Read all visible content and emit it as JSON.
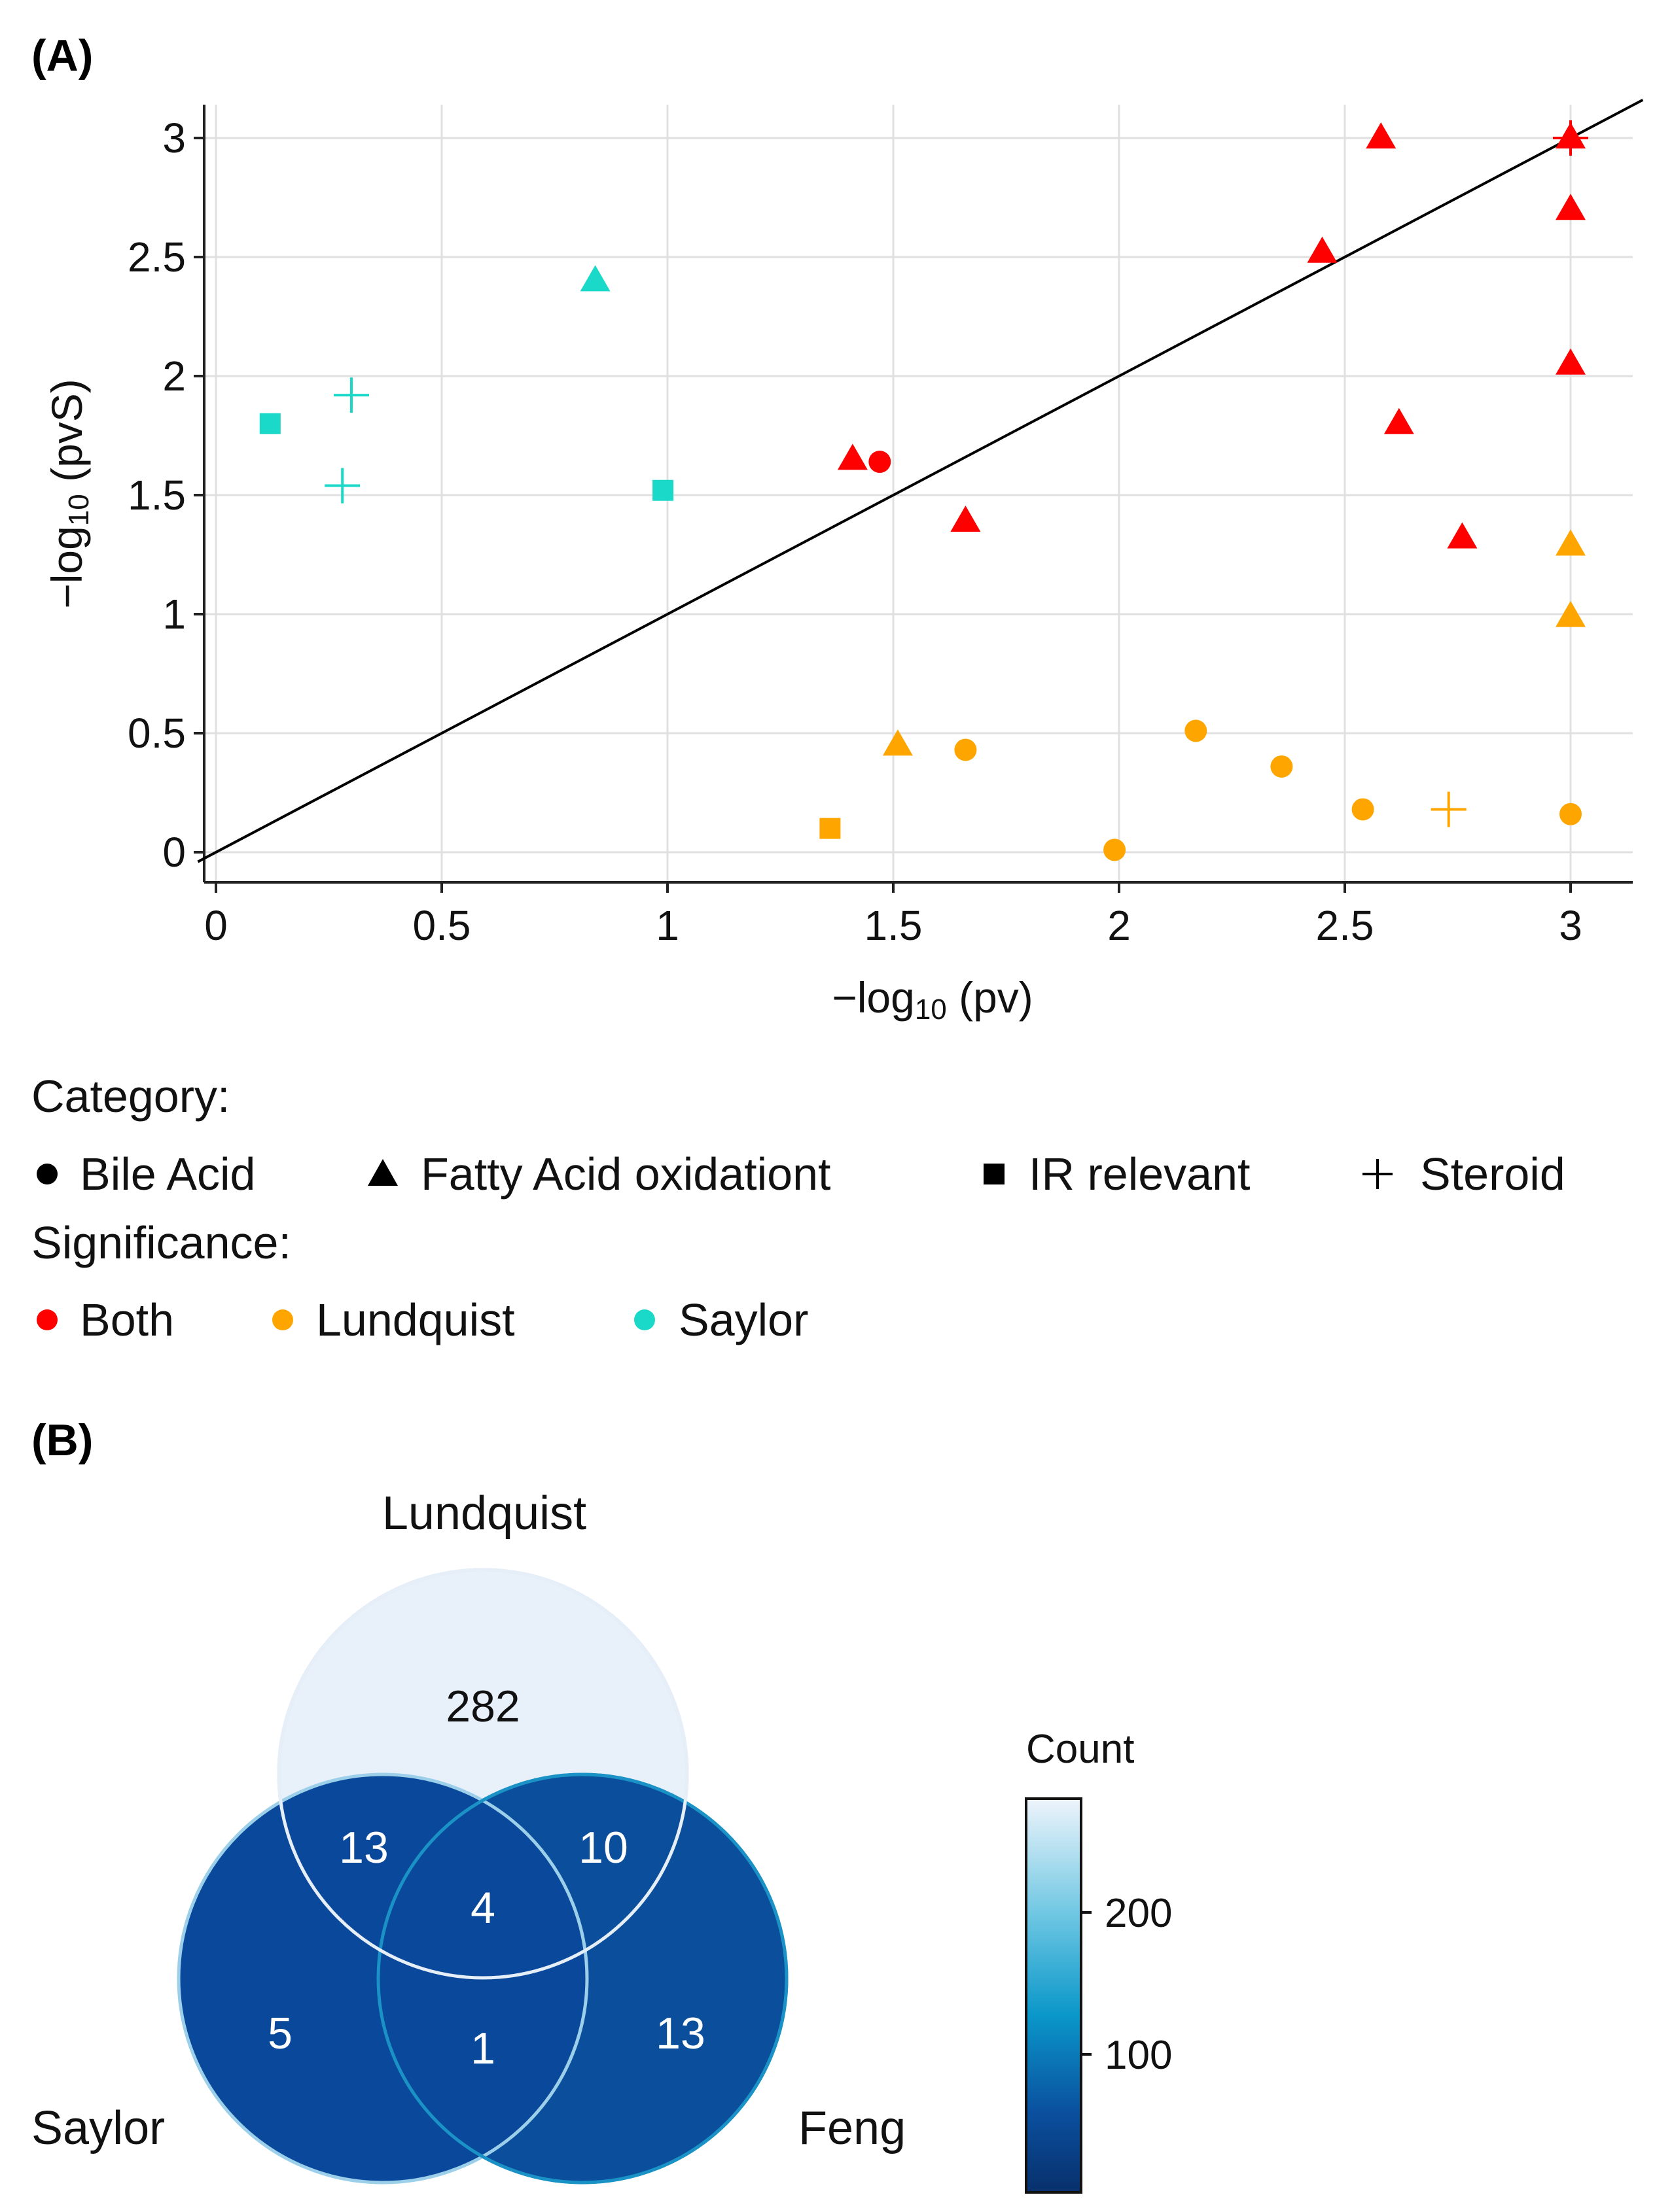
{
  "panel_a": {
    "label": "(A)",
    "xlabel_main": "−log",
    "xlabel_sub": "10",
    "xlabel_tail": " (pv)",
    "ylabel_main": "−log",
    "ylabel_sub": "10",
    "ylabel_tail": " (pvS)",
    "legend": {
      "category_title": "Category:",
      "categories": [
        "Bile Acid",
        "Fatty Acid oxidationt",
        "IR relevant",
        "Steroid"
      ],
      "significance_title": "Significance:",
      "significance": [
        "Both",
        "Lundquist",
        "Saylor"
      ]
    }
  },
  "panel_b": {
    "label": "(B)",
    "set_names": [
      "Lundquist",
      "Saylor",
      "Feng"
    ],
    "regions": {
      "lundquist_only": "282",
      "lundquist_saylor": "13",
      "lundquist_feng": "10",
      "all_three": "4",
      "saylor_only": "5",
      "saylor_feng": "1",
      "feng_only": "13"
    },
    "colorbar": {
      "title": "Count",
      "ticks": [
        "200",
        "100"
      ]
    }
  },
  "colors": {
    "both": "#ff0000",
    "lundquist": "#ffa500",
    "saylor": "#1ad9c8",
    "grid": "#e0e0e0",
    "venn_dark": "#0a4f9e",
    "venn_light": "#e8f0fa"
  },
  "chart_data": [
    {
      "type": "scatter",
      "title": "",
      "xlabel": "−log10 (pv)",
      "ylabel": "−log10 (pvS)",
      "xlim": [
        -0.05,
        3.14
      ],
      "ylim": [
        -0.14,
        3.14
      ],
      "xticks": [
        0,
        0.5,
        1,
        1.5,
        2,
        2.5,
        3
      ],
      "xtick_labels": [
        "0",
        "0.5",
        "1",
        "1.5",
        "2",
        "2.5",
        "3"
      ],
      "yticks": [
        0,
        0.5,
        1,
        1.5,
        2,
        2.5,
        3
      ],
      "ytick_labels": [
        "0",
        "0.5",
        "1",
        "1.5",
        "2",
        "2.5",
        "3"
      ],
      "grid": true,
      "reference_line": "y = x",
      "points": [
        {
          "x": 2.58,
          "y": 3.0,
          "category": "Fatty Acid oxidationt",
          "significance": "Both"
        },
        {
          "x": 3.0,
          "y": 3.0,
          "category": "Fatty Acid oxidationt",
          "significance": "Both"
        },
        {
          "x": 3.0,
          "y": 3.0,
          "category": "Steroid",
          "significance": "Both"
        },
        {
          "x": 3.0,
          "y": 2.7,
          "category": "Fatty Acid oxidationt",
          "significance": "Both"
        },
        {
          "x": 2.45,
          "y": 2.52,
          "category": "Fatty Acid oxidationt",
          "significance": "Both"
        },
        {
          "x": 3.0,
          "y": 2.05,
          "category": "Fatty Acid oxidationt",
          "significance": "Both"
        },
        {
          "x": 2.62,
          "y": 1.8,
          "category": "Fatty Acid oxidationt",
          "significance": "Both"
        },
        {
          "x": 1.41,
          "y": 1.65,
          "category": "Fatty Acid oxidationt",
          "significance": "Both"
        },
        {
          "x": 1.47,
          "y": 1.64,
          "category": "Bile Acid",
          "significance": "Both"
        },
        {
          "x": 1.66,
          "y": 1.39,
          "category": "Fatty Acid oxidationt",
          "significance": "Both"
        },
        {
          "x": 2.76,
          "y": 1.32,
          "category": "Fatty Acid oxidationt",
          "significance": "Both"
        },
        {
          "x": 0.84,
          "y": 2.4,
          "category": "Fatty Acid oxidationt",
          "significance": "Saylor"
        },
        {
          "x": 0.12,
          "y": 1.8,
          "category": "IR relevant",
          "significance": "Saylor"
        },
        {
          "x": 0.3,
          "y": 1.92,
          "category": "Steroid",
          "significance": "Saylor"
        },
        {
          "x": 0.28,
          "y": 1.54,
          "category": "Steroid",
          "significance": "Saylor"
        },
        {
          "x": 0.99,
          "y": 1.52,
          "category": "IR relevant",
          "significance": "Saylor"
        },
        {
          "x": 3.0,
          "y": 1.29,
          "category": "Fatty Acid oxidationt",
          "significance": "Lundquist"
        },
        {
          "x": 3.0,
          "y": 0.99,
          "category": "Fatty Acid oxidationt",
          "significance": "Lundquist"
        },
        {
          "x": 1.51,
          "y": 0.45,
          "category": "Fatty Acid oxidationt",
          "significance": "Lundquist"
        },
        {
          "x": 1.66,
          "y": 0.43,
          "category": "Bile Acid",
          "significance": "Lundquist"
        },
        {
          "x": 2.17,
          "y": 0.51,
          "category": "Bile Acid",
          "significance": "Lundquist"
        },
        {
          "x": 2.36,
          "y": 0.36,
          "category": "Bile Acid",
          "significance": "Lundquist"
        },
        {
          "x": 2.54,
          "y": 0.18,
          "category": "Bile Acid",
          "significance": "Lundquist"
        },
        {
          "x": 2.73,
          "y": 0.18,
          "category": "Steroid",
          "significance": "Lundquist"
        },
        {
          "x": 3.0,
          "y": 0.16,
          "category": "Bile Acid",
          "significance": "Lundquist"
        },
        {
          "x": 1.36,
          "y": 0.1,
          "category": "IR relevant",
          "significance": "Lundquist"
        },
        {
          "x": 1.99,
          "y": 0.01,
          "category": "Bile Acid",
          "significance": "Lundquist"
        }
      ]
    },
    {
      "type": "venn",
      "sets": [
        "Lundquist",
        "Saylor",
        "Feng"
      ],
      "values": {
        "Lundquist only": 282,
        "Lundquist ∩ Saylor": 13,
        "Lundquist ∩ Feng": 10,
        "Lundquist ∩ Saylor ∩ Feng": 4,
        "Saylor only": 5,
        "Saylor ∩ Feng": 1,
        "Feng only": 13
      },
      "colorbar": {
        "title": "Count",
        "range": [
          0,
          282
        ],
        "ticks": [
          100,
          200
        ]
      }
    }
  ]
}
